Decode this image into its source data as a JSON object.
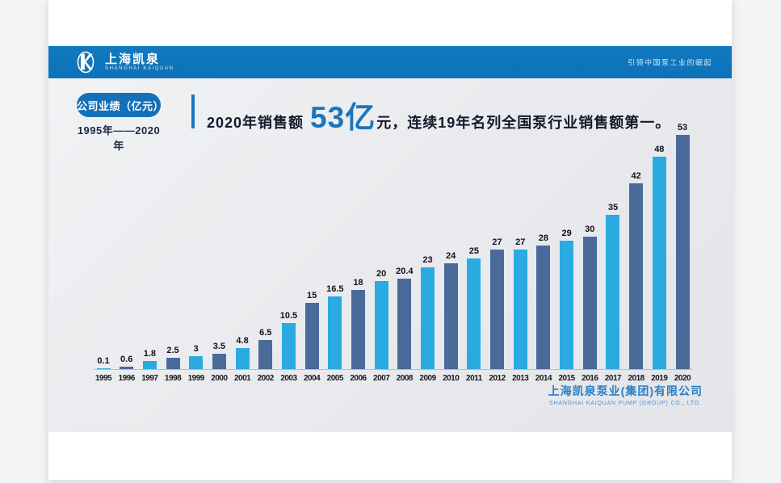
{
  "header": {
    "logo_cn": "上海凯泉",
    "logo_en": "SHANGHAI KAIQUAN",
    "slogan": "引领中国泵工业的崛起",
    "band_color": "#0e72b8"
  },
  "title_block": {
    "badge_label": "公司业绩（亿元）",
    "range_label": "1995年——2020年",
    "headline_prefix": "2020年销售额",
    "headline_number": "53亿",
    "headline_suffix": "元，连续19年名列全国泵行业销售额第一。"
  },
  "footer": {
    "company_cn": "上海凯泉泵业(集团)有限公司",
    "company_en": "SHANGHAI KAIQUAN PUMP (GROUP) CO., LTD."
  },
  "chart_data": {
    "type": "bar",
    "title": "公司业绩（亿元） 1995年——2020年",
    "categories": [
      "1995",
      "1996",
      "1997",
      "1998",
      "1999",
      "2000",
      "2001",
      "2002",
      "2003",
      "2004",
      "2005",
      "2006",
      "2007",
      "2008",
      "2009",
      "2010",
      "2011",
      "2012",
      "2013",
      "2014",
      "2015",
      "2016",
      "2017",
      "2018",
      "2019",
      "2020"
    ],
    "values": [
      0.1,
      0.6,
      1.8,
      2.5,
      3,
      3.5,
      4.8,
      6.5,
      10.5,
      15,
      16.5,
      18,
      20,
      20.4,
      23,
      24,
      25,
      27,
      27,
      28,
      29,
      30,
      35,
      42,
      48,
      53
    ],
    "xlabel": "",
    "ylabel": "",
    "ylim": [
      0,
      53
    ],
    "grid": false,
    "legend": "none",
    "value_labels_shown": true,
    "colors": {
      "odd_year_bar": "#29abe2",
      "even_year_bar": "#4a6b99",
      "axis": "#b8bdc3"
    }
  }
}
